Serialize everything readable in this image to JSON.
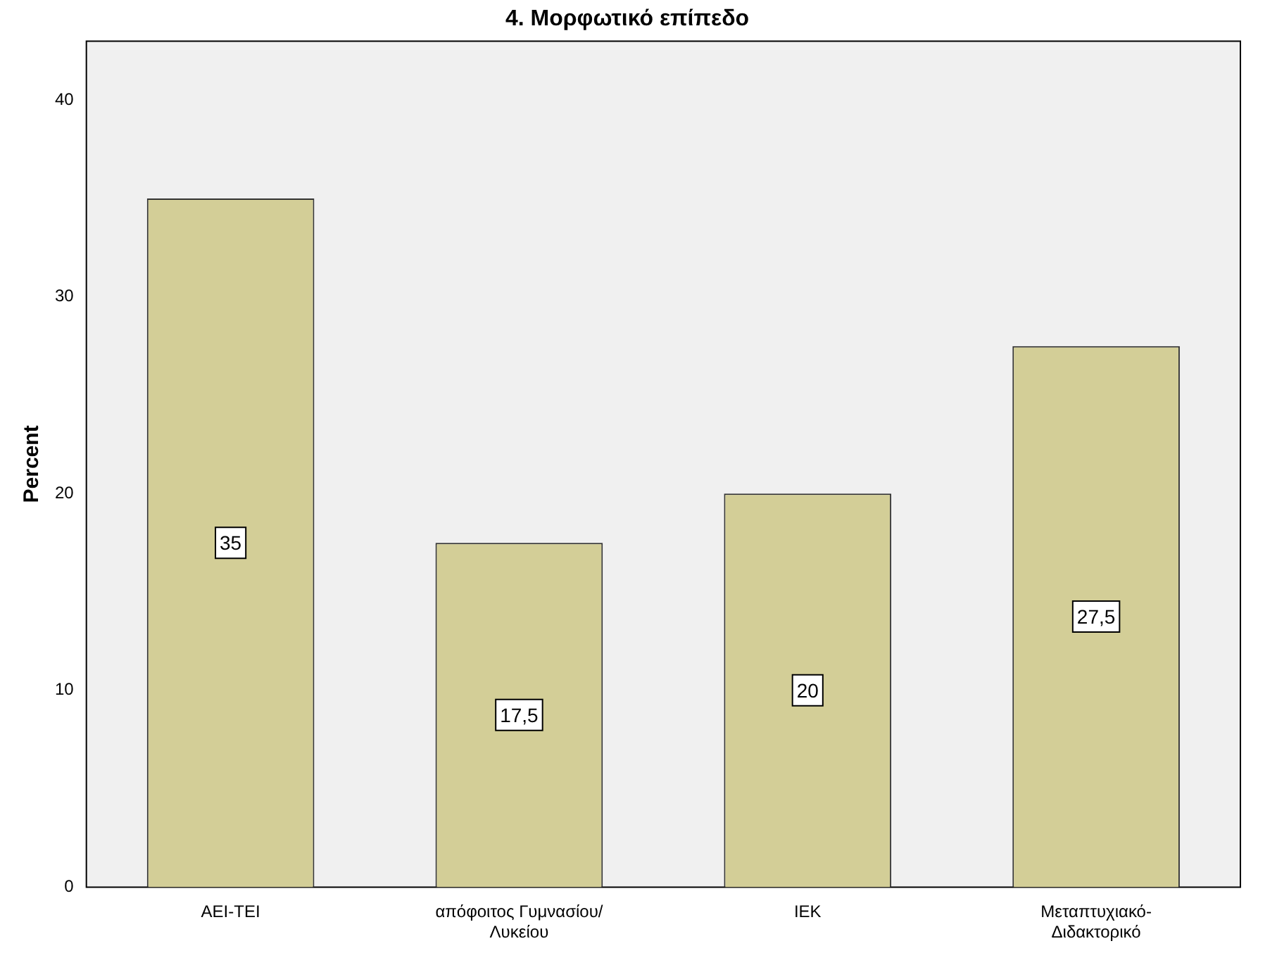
{
  "chart_data": {
    "type": "bar",
    "title": "4. Μορφωτικό επίπεδο",
    "ylabel": "Percent",
    "categories": [
      "AEI-TEI",
      "απόφοιτος Γυμνασίου/ Λυκείου",
      "IEK",
      "Μεταπτυχιακό- Διδακτορικό"
    ],
    "values": [
      35,
      17.5,
      20,
      27.5
    ],
    "value_labels": [
      "35",
      "17,5",
      "20",
      "27,5"
    ],
    "color": "#d3ce97",
    "ylim": [
      0,
      43
    ],
    "yticks": [
      0,
      10,
      20,
      30,
      40
    ],
    "grid": false,
    "legend": false
  }
}
